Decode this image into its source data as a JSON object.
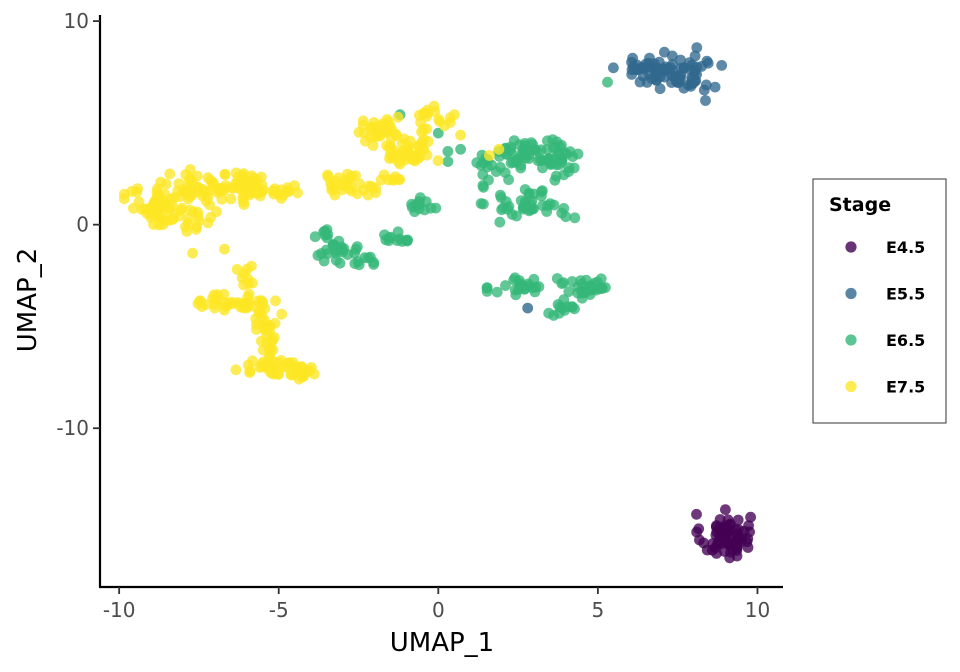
{
  "chart_data": {
    "type": "scatter",
    "title": "",
    "xlabel": "UMAP_1",
    "ylabel": "UMAP_2",
    "xlim": [
      -10.6,
      10.8
    ],
    "ylim": [
      -17.8,
      10.3
    ],
    "xticks": [
      -10,
      -5,
      0,
      5,
      10
    ],
    "yticks": [
      10,
      0,
      -10
    ],
    "xtick_labels": [
      "-10",
      "-5",
      "0",
      "5",
      "10"
    ],
    "ytick_labels": [
      "10",
      "0",
      "-10"
    ],
    "grid": false,
    "legend": {
      "title": "Stage",
      "position": "right"
    },
    "series": [
      {
        "name": "E4.5",
        "color": "#440154",
        "clusters": [
          {
            "cx": 9.0,
            "cy": -15.3,
            "rx": 0.7,
            "ry": 1.0,
            "n": 70
          }
        ],
        "points": []
      },
      {
        "name": "E5.5",
        "color": "#31688e",
        "clusters": [
          {
            "cx": 6.8,
            "cy": 7.6,
            "rx": 1.1,
            "ry": 0.8,
            "n": 55
          },
          {
            "cx": 8.1,
            "cy": 7.4,
            "rx": 0.6,
            "ry": 1.0,
            "n": 30
          }
        ],
        "points": [
          [
            2.8,
            -4.1
          ]
        ]
      },
      {
        "name": "E6.5",
        "color": "#35b779",
        "clusters": [
          {
            "cx": 2.8,
            "cy": 3.6,
            "rx": 1.1,
            "ry": 0.8,
            "n": 50
          },
          {
            "cx": 3.9,
            "cy": 3.0,
            "rx": 0.6,
            "ry": 0.7,
            "n": 25
          },
          {
            "cx": 2.9,
            "cy": 1.0,
            "rx": 1.2,
            "ry": 0.7,
            "n": 40
          },
          {
            "cx": 1.6,
            "cy": 2.6,
            "rx": 0.5,
            "ry": 0.7,
            "n": 15
          },
          {
            "cx": 2.7,
            "cy": -3.0,
            "rx": 0.9,
            "ry": 0.6,
            "n": 25
          },
          {
            "cx": 4.7,
            "cy": -3.1,
            "rx": 0.6,
            "ry": 0.6,
            "n": 30
          },
          {
            "cx": 3.9,
            "cy": -4.1,
            "rx": 0.5,
            "ry": 0.4,
            "n": 12
          },
          {
            "cx": -3.3,
            "cy": -1.3,
            "rx": 0.7,
            "ry": 0.5,
            "n": 22
          },
          {
            "cx": -2.3,
            "cy": -1.6,
            "rx": 0.4,
            "ry": 0.4,
            "n": 10
          },
          {
            "cx": -1.3,
            "cy": -0.6,
            "rx": 0.6,
            "ry": 0.4,
            "n": 12
          },
          {
            "cx": -0.3,
            "cy": 0.9,
            "rx": 0.6,
            "ry": 0.4,
            "n": 12
          },
          {
            "cx": -3.6,
            "cy": -0.3,
            "rx": 0.3,
            "ry": 0.3,
            "n": 6
          }
        ],
        "points": [
          [
            5.3,
            7.0
          ],
          [
            -1.2,
            5.4
          ],
          [
            0.0,
            4.5
          ],
          [
            0.3,
            3.6
          ],
          [
            0.7,
            3.7
          ],
          [
            0.3,
            3.1
          ]
        ]
      },
      {
        "name": "E7.5",
        "color": "#fde725",
        "clusters": [
          {
            "cx": -8.8,
            "cy": 0.8,
            "rx": 0.8,
            "ry": 0.8,
            "n": 60
          },
          {
            "cx": -7.4,
            "cy": 1.8,
            "rx": 1.0,
            "ry": 0.7,
            "n": 50
          },
          {
            "cx": -6.0,
            "cy": 1.9,
            "rx": 0.8,
            "ry": 0.7,
            "n": 45
          },
          {
            "cx": -7.6,
            "cy": 0.3,
            "rx": 0.5,
            "ry": 0.6,
            "n": 15
          },
          {
            "cx": -4.8,
            "cy": 1.6,
            "rx": 0.6,
            "ry": 0.3,
            "n": 12
          },
          {
            "cx": -2.9,
            "cy": 2.0,
            "rx": 0.8,
            "ry": 0.5,
            "n": 28
          },
          {
            "cx": -1.8,
            "cy": 4.5,
            "rx": 0.7,
            "ry": 0.6,
            "n": 35
          },
          {
            "cx": -0.9,
            "cy": 3.6,
            "rx": 0.7,
            "ry": 0.7,
            "n": 40
          },
          {
            "cx": -0.1,
            "cy": 5.2,
            "rx": 0.5,
            "ry": 0.5,
            "n": 18
          },
          {
            "cx": -1.4,
            "cy": 2.3,
            "rx": 0.4,
            "ry": 0.3,
            "n": 8
          },
          {
            "cx": -6.4,
            "cy": -3.8,
            "rx": 1.0,
            "ry": 0.4,
            "n": 40
          },
          {
            "cx": -6.0,
            "cy": -2.6,
            "rx": 0.3,
            "ry": 0.5,
            "n": 8
          },
          {
            "cx": -5.4,
            "cy": -4.8,
            "rx": 0.4,
            "ry": 0.7,
            "n": 22
          },
          {
            "cx": -5.2,
            "cy": -7.0,
            "rx": 0.9,
            "ry": 0.4,
            "n": 40
          },
          {
            "cx": -4.1,
            "cy": -7.2,
            "rx": 0.5,
            "ry": 0.3,
            "n": 14
          },
          {
            "cx": -5.3,
            "cy": -6.0,
            "rx": 0.3,
            "ry": 0.4,
            "n": 8
          }
        ],
        "points": [
          [
            -7.7,
            -1.4
          ],
          [
            -6.7,
            -1.2
          ],
          [
            -6.3,
            -2.2
          ],
          [
            1.9,
            3.7
          ],
          [
            1.6,
            3.4
          ],
          [
            0.7,
            4.4
          ]
        ]
      }
    ]
  }
}
